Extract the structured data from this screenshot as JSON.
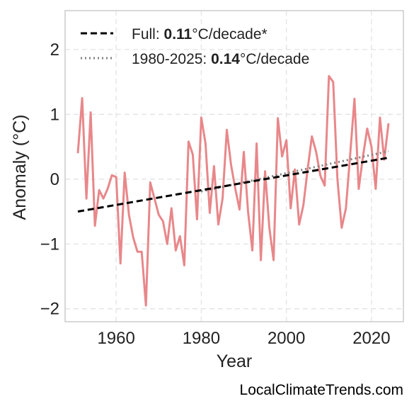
{
  "chart_data": {
    "type": "line",
    "xlabel": "Year",
    "ylabel": "Anomaly (°C)",
    "xlim": [
      1948,
      2027.5
    ],
    "ylim": [
      -2.2,
      2.6
    ],
    "xticks": [
      1960,
      1980,
      2000,
      2020
    ],
    "yticks": [
      -2,
      -1,
      0,
      1,
      2
    ],
    "ytick_labels": [
      "−2",
      "−1",
      "0",
      "1",
      "2"
    ],
    "grid": true,
    "legend_position": "top-left",
    "colors": {
      "series": "#e8878a",
      "full_trend": "#000000",
      "recent_trend": "#808080"
    },
    "series": [
      {
        "x": [
          1951,
          1952,
          1953,
          1954,
          1955,
          1956,
          1957,
          1958,
          1959,
          1960,
          1961,
          1962,
          1963,
          1964,
          1965,
          1966,
          1967,
          1968,
          1969,
          1970,
          1971,
          1972,
          1973,
          1974,
          1975,
          1976,
          1977,
          1978,
          1979,
          1980,
          1981,
          1982,
          1983,
          1984,
          1985,
          1986,
          1987,
          1988,
          1989,
          1990,
          1991,
          1992,
          1993,
          1994,
          1995,
          1996,
          1997,
          1998,
          1999,
          2000,
          2001,
          2002,
          2003,
          2004,
          2005,
          2006,
          2007,
          2008,
          2009,
          2010,
          2011,
          2012,
          2013,
          2014,
          2015,
          2016,
          2017,
          2018,
          2019,
          2020,
          2021,
          2022,
          2023,
          2024
        ],
        "values": [
          0.4,
          1.25,
          -0.3,
          1.03,
          -0.72,
          -0.17,
          -0.3,
          -0.15,
          0.06,
          0.03,
          -1.3,
          0.1,
          -0.55,
          -0.9,
          -1.12,
          -1.12,
          -1.95,
          -0.05,
          -0.3,
          -0.55,
          -0.65,
          -1.0,
          -0.45,
          -1.1,
          -0.88,
          -1.33,
          0.58,
          0.38,
          -0.62,
          0.95,
          0.55,
          -0.52,
          0.2,
          -0.7,
          -0.3,
          0.76,
          0.22,
          -0.15,
          -0.47,
          0.42,
          -0.5,
          -1.1,
          0.55,
          -1.25,
          0.12,
          -0.75,
          -1.25,
          0.94,
          0.35,
          0.6,
          -0.45,
          0.15,
          -0.7,
          -0.4,
          0.15,
          0.66,
          0.42,
          0.05,
          -0.1,
          1.59,
          1.5,
          0.0,
          -0.75,
          -0.45,
          0.38,
          1.24,
          -0.15,
          0.35,
          0.78,
          0.5,
          -0.15,
          0.95,
          0.3,
          0.86
        ]
      }
    ],
    "trends": [
      {
        "name": "full",
        "x": [
          1951,
          2024
        ],
        "values": [
          -0.5,
          0.33
        ]
      },
      {
        "name": "1980-2025",
        "x": [
          1980,
          2024
        ],
        "values": [
          -0.19,
          0.43
        ]
      }
    ]
  },
  "legend": {
    "full_prefix": "Full: ",
    "full_rate": "0.11",
    "full_suffix": "°C/decade*",
    "recent_prefix": "1980-2025: ",
    "recent_rate": "0.14",
    "recent_suffix": "°C/decade"
  },
  "credit": "LocalClimateTrends.com"
}
